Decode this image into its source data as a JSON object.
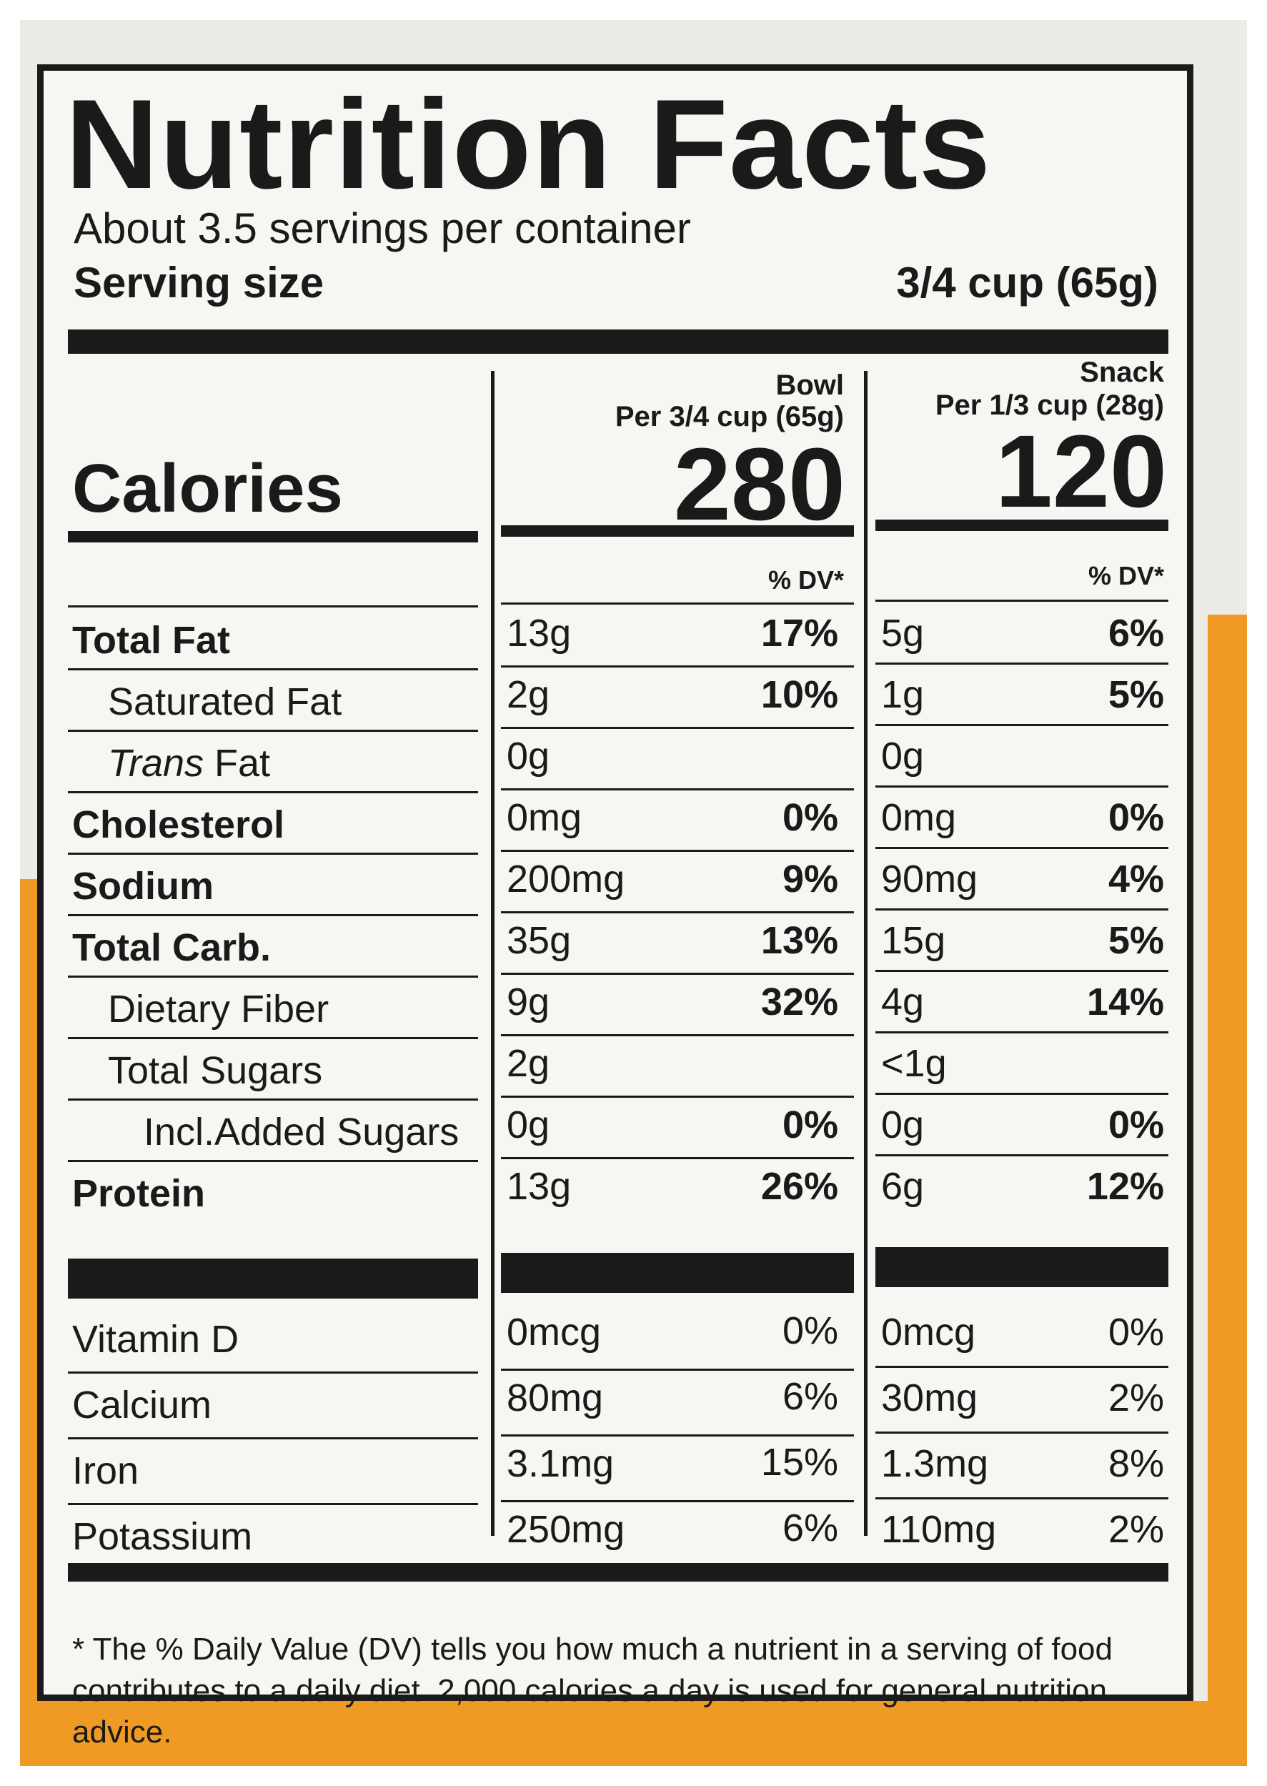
{
  "title": "Nutrition Facts",
  "servings_per_container": "About 3.5 servings per container",
  "serving_size": {
    "label": "Serving size",
    "value": "3/4 cup (65g)"
  },
  "columns": [
    {
      "name": "Bowl",
      "portion": "Per 3/4 cup (65g)",
      "calories": "280",
      "dv_header": "% DV*"
    },
    {
      "name": "Snack",
      "portion": "Per 1/3 cup (28g)",
      "calories": "120",
      "dv_header": "% DV*"
    }
  ],
  "calories_label": "Calories",
  "nutrients": [
    {
      "label": "Total Fat",
      "bowl_amount": "13g",
      "bowl_dv": "17%",
      "snack_amount": "5g",
      "snack_dv": "6%"
    },
    {
      "label": "Saturated Fat",
      "bowl_amount": "2g",
      "bowl_dv": "10%",
      "snack_amount": "1g",
      "snack_dv": "5%"
    },
    {
      "label_italic": "Trans",
      "label_rest": " Fat",
      "bowl_amount": "0g",
      "bowl_dv": "",
      "snack_amount": "0g",
      "snack_dv": ""
    },
    {
      "label": "Cholesterol",
      "bowl_amount": "0mg",
      "bowl_dv": "0%",
      "snack_amount": "0mg",
      "snack_dv": "0%"
    },
    {
      "label": "Sodium",
      "bowl_amount": "200mg",
      "bowl_dv": "9%",
      "snack_amount": "90mg",
      "snack_dv": "4%"
    },
    {
      "label": "Total Carb.",
      "bowl_amount": "35g",
      "bowl_dv": "13%",
      "snack_amount": "15g",
      "snack_dv": "5%"
    },
    {
      "label": "Dietary Fiber",
      "bowl_amount": "9g",
      "bowl_dv": "32%",
      "snack_amount": "4g",
      "snack_dv": "14%"
    },
    {
      "label": "Total Sugars",
      "bowl_amount": "2g",
      "bowl_dv": "",
      "snack_amount": "<1g",
      "snack_dv": ""
    },
    {
      "label": "Incl.Added Sugars",
      "bowl_amount": "0g",
      "bowl_dv": "0%",
      "snack_amount": "0g",
      "snack_dv": "0%"
    },
    {
      "label": "Protein",
      "bowl_amount": "13g",
      "bowl_dv": "26%",
      "snack_amount": "6g",
      "snack_dv": "12%"
    }
  ],
  "vitamins": [
    {
      "label": "Vitamin D",
      "bowl_amount": "0mcg",
      "bowl_dv": "0%",
      "snack_amount": "0mcg",
      "snack_dv": "0%"
    },
    {
      "label": "Calcium",
      "bowl_amount": "80mg",
      "bowl_dv": "6%",
      "snack_amount": "30mg",
      "snack_dv": "2%"
    },
    {
      "label": "Iron",
      "bowl_amount": "3.1mg",
      "bowl_dv": "15%",
      "snack_amount": "1.3mg",
      "snack_dv": "8%"
    },
    {
      "label": "Potassium",
      "bowl_amount": "250mg",
      "bowl_dv": "6%",
      "snack_amount": "110mg",
      "snack_dv": "2%"
    }
  ],
  "footnote": "* The % Daily Value (DV) tells you how much a nutrient in a serving of food contributes to a daily diet. 2,000 calories a day is used for general nutrition advice.",
  "colors": {
    "label_bg": "#f6f6f2",
    "ink": "#1a1a1a",
    "package_orange": "#ef9a24"
  }
}
